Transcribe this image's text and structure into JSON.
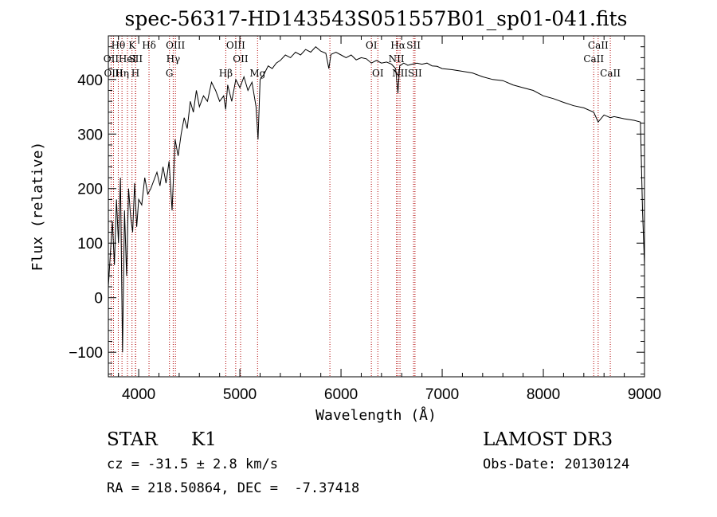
{
  "chart_data": {
    "type": "line",
    "title": "spec-56317-HD143543S051557B01_sp01-041.fits",
    "xlabel": "Wavelength (Å)",
    "ylabel": "Flux (relative)",
    "xlim": [
      3700,
      9000
    ],
    "ylim": [
      -145,
      480
    ],
    "x_ticks": [
      4000,
      5000,
      6000,
      7000,
      8000,
      9000
    ],
    "y_ticks": [
      -100,
      0,
      100,
      200,
      300,
      400
    ],
    "series": [
      {
        "name": "spectrum",
        "x": [
          3700,
          3720,
          3740,
          3760,
          3780,
          3800,
          3820,
          3840,
          3860,
          3880,
          3900,
          3920,
          3940,
          3960,
          3980,
          4000,
          4030,
          4060,
          4090,
          4120,
          4150,
          4180,
          4210,
          4240,
          4270,
          4300,
          4330,
          4360,
          4390,
          4420,
          4450,
          4480,
          4510,
          4540,
          4570,
          4600,
          4640,
          4680,
          4720,
          4760,
          4800,
          4840,
          4860,
          4880,
          4920,
          4960,
          5000,
          5040,
          5080,
          5120,
          5160,
          5180,
          5200,
          5240,
          5280,
          5320,
          5360,
          5400,
          5450,
          5500,
          5550,
          5600,
          5650,
          5700,
          5750,
          5800,
          5850,
          5880,
          5900,
          5950,
          6000,
          6050,
          6100,
          6150,
          6200,
          6250,
          6300,
          6350,
          6400,
          6450,
          6500,
          6540,
          6563,
          6580,
          6620,
          6660,
          6700,
          6750,
          6800,
          6850,
          6900,
          6950,
          7000,
          7100,
          7200,
          7300,
          7400,
          7500,
          7600,
          7700,
          7800,
          7900,
          8000,
          8100,
          8200,
          8300,
          8400,
          8498,
          8542,
          8600,
          8662,
          8700,
          8800,
          8900,
          8960,
          8980,
          9000
        ],
        "y": [
          20,
          80,
          140,
          60,
          180,
          100,
          220,
          -100,
          160,
          40,
          200,
          150,
          120,
          210,
          130,
          180,
          170,
          220,
          190,
          200,
          215,
          230,
          205,
          240,
          210,
          250,
          160,
          290,
          260,
          300,
          330,
          310,
          360,
          340,
          380,
          350,
          370,
          360,
          395,
          380,
          360,
          370,
          345,
          390,
          360,
          400,
          385,
          405,
          380,
          395,
          350,
          290,
          400,
          410,
          425,
          420,
          430,
          435,
          445,
          440,
          450,
          445,
          455,
          450,
          460,
          452,
          448,
          420,
          446,
          450,
          445,
          440,
          445,
          436,
          440,
          438,
          430,
          435,
          430,
          432,
          428,
          420,
          375,
          425,
          430,
          426,
          428,
          430,
          428,
          430,
          425,
          424,
          420,
          418,
          415,
          412,
          405,
          400,
          398,
          390,
          385,
          380,
          370,
          365,
          358,
          352,
          348,
          340,
          322,
          335,
          330,
          332,
          328,
          325,
          322,
          160,
          60
        ]
      }
    ],
    "line_markers": [
      {
        "label": "Hθ",
        "wl": 3798,
        "row": 0
      },
      {
        "label": "OII",
        "wl": 3727,
        "row": 1
      },
      {
        "label": "OIII",
        "wl": 3751,
        "row": 2
      },
      {
        "label": "Hη",
        "wl": 3835,
        "row": 2
      },
      {
        "label": "HeI",
        "wl": 3889,
        "row": 1
      },
      {
        "label": "K",
        "wl": 3934,
        "row": 0
      },
      {
        "label": "SII",
        "wl": 3970,
        "row": 1
      },
      {
        "label": "H",
        "wl": 3968,
        "row": 2
      },
      {
        "label": "Hδ",
        "wl": 4102,
        "row": 0
      },
      {
        "label": "OIII",
        "wl": 4363,
        "row": 0
      },
      {
        "label": "Hγ",
        "wl": 4341,
        "row": 1
      },
      {
        "label": "G",
        "wl": 4304,
        "row": 2
      },
      {
        "label": "OIII",
        "wl": 4959,
        "row": 0
      },
      {
        "label": "OII",
        "wl": 5007,
        "row": 1
      },
      {
        "label": "Hβ",
        "wl": 4861,
        "row": 2
      },
      {
        "label": "Mg",
        "wl": 5175,
        "row": 2
      },
      {
        "label": "OI",
        "wl": 6300,
        "row": 0
      },
      {
        "label": "OI",
        "wl": 6364,
        "row": 2
      },
      {
        "label": "Hα",
        "wl": 6563,
        "row": 0
      },
      {
        "label": "SII",
        "wl": 6717,
        "row": 0
      },
      {
        "label": "NII",
        "wl": 6548,
        "row": 1
      },
      {
        "label": "NII",
        "wl": 6583,
        "row": 2
      },
      {
        "label": "SII",
        "wl": 6731,
        "row": 2
      },
      {
        "label": "CaII",
        "wl": 8542,
        "row": 0
      },
      {
        "label": "CaII",
        "wl": 8498,
        "row": 1
      },
      {
        "label": "CaII",
        "wl": 8662,
        "row": 2
      }
    ],
    "extra_marker_lines": [
      5890,
      6717,
      6731
    ],
    "colors": {
      "spectrum": "#000000",
      "markers": "#b00000"
    }
  },
  "info": {
    "object_class": "STAR",
    "subclass": "K1",
    "survey": "LAMOST DR3",
    "cz_text": "cz = -31.5 ± 2.8 km/s",
    "obs_date": "Obs-Date: 20130124",
    "coords_text": "RA = 218.50864, DEC =  -7.37418"
  }
}
